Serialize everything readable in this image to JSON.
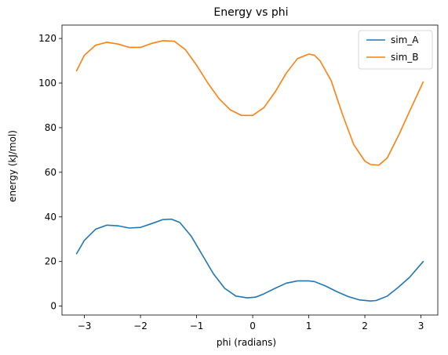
{
  "chart_data": {
    "type": "line",
    "title": "Energy vs phi",
    "xlabel": "phi (radians)",
    "ylabel": "energy (kJ/mol)",
    "xlim": [
      -3.4,
      3.3
    ],
    "ylim": [
      -4,
      126
    ],
    "xticks": [
      -3,
      -2,
      -1,
      0,
      1,
      2,
      3
    ],
    "xtick_labels": [
      "−3",
      "−2",
      "−1",
      "0",
      "1",
      "2",
      "3"
    ],
    "yticks": [
      0,
      20,
      40,
      60,
      80,
      100,
      120
    ],
    "ytick_labels": [
      "0",
      "20",
      "40",
      "60",
      "80",
      "100",
      "120"
    ],
    "grid": false,
    "legend_position": "top-right",
    "series": [
      {
        "name": "sim_A",
        "color": "#1f77b4",
        "x": [
          -3.14,
          -3.0,
          -2.8,
          -2.6,
          -2.4,
          -2.2,
          -2.0,
          -1.8,
          -1.6,
          -1.45,
          -1.3,
          -1.1,
          -0.9,
          -0.7,
          -0.5,
          -0.3,
          -0.1,
          0.05,
          0.2,
          0.4,
          0.6,
          0.8,
          1.0,
          1.1,
          1.3,
          1.5,
          1.7,
          1.9,
          2.1,
          2.2,
          2.4,
          2.6,
          2.8,
          3.04
        ],
        "y": [
          23.5,
          29.5,
          34.5,
          36.3,
          36.0,
          35.0,
          35.3,
          37.0,
          38.8,
          39.0,
          37.5,
          31.5,
          23.0,
          14.5,
          8.0,
          4.5,
          3.7,
          4.0,
          5.5,
          8.0,
          10.3,
          11.3,
          11.3,
          11.0,
          9.0,
          6.5,
          4.3,
          2.8,
          2.3,
          2.5,
          4.5,
          8.5,
          13.0,
          20.0
        ]
      },
      {
        "name": "sim_B",
        "color": "#ff7f0e",
        "x": [
          -3.14,
          -3.0,
          -2.8,
          -2.6,
          -2.4,
          -2.2,
          -2.0,
          -1.8,
          -1.6,
          -1.4,
          -1.2,
          -1.0,
          -0.8,
          -0.6,
          -0.4,
          -0.2,
          0.0,
          0.2,
          0.4,
          0.6,
          0.8,
          1.0,
          1.1,
          1.2,
          1.4,
          1.6,
          1.8,
          2.0,
          2.1,
          2.25,
          2.4,
          2.6,
          2.8,
          3.04
        ],
        "y": [
          105.5,
          112.5,
          117.0,
          118.3,
          117.5,
          116.0,
          116.0,
          117.8,
          119.0,
          118.8,
          115.0,
          108.0,
          100.0,
          93.0,
          88.0,
          85.5,
          85.5,
          89.0,
          96.0,
          104.5,
          111.0,
          113.0,
          112.5,
          110.0,
          101.0,
          86.0,
          72.5,
          65.0,
          63.5,
          63.2,
          66.5,
          76.5,
          87.5,
          100.5
        ]
      }
    ]
  }
}
